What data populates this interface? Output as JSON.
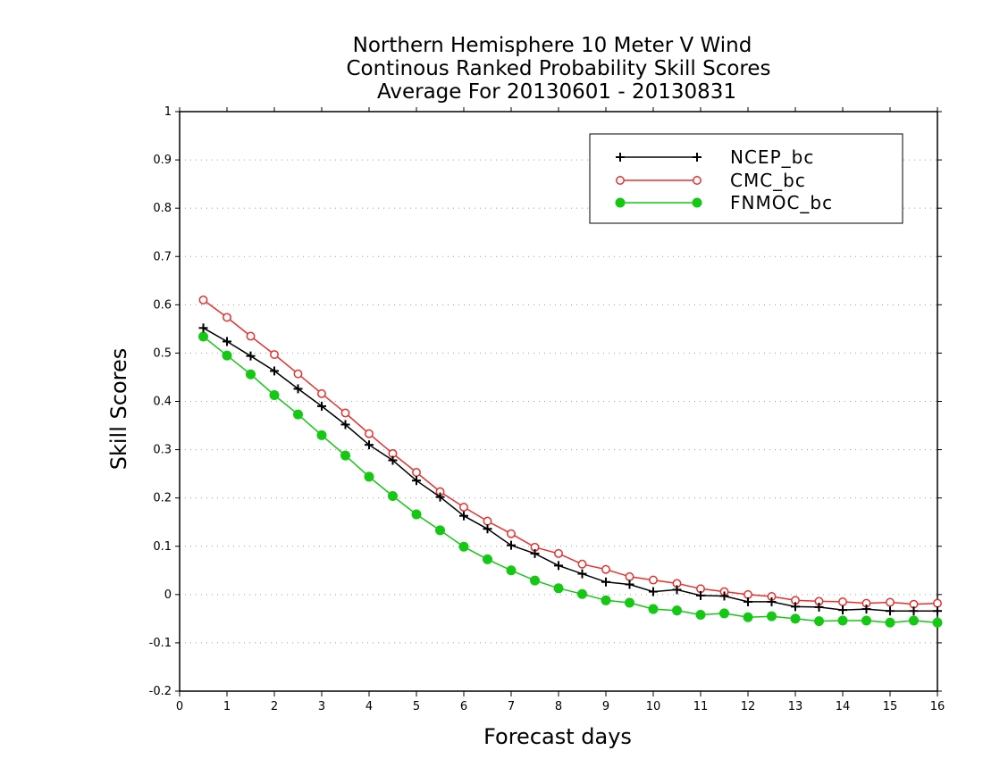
{
  "chart_data": {
    "type": "line",
    "title_lines": [
      "Northern Hemisphere 10 Meter V Wind",
      "Continous Ranked Probability Skill Scores",
      "Average For 20130601 - 20130831"
    ],
    "xlabel": "Forecast days",
    "ylabel": "Skill Scores",
    "xlim": [
      0,
      16
    ],
    "ylim": [
      -0.2,
      1
    ],
    "xticks": [
      "0",
      "1",
      "2",
      "3",
      "4",
      "5",
      "6",
      "7",
      "8",
      "9",
      "10",
      "11",
      "12",
      "13",
      "14",
      "15",
      "16"
    ],
    "yticks": [
      "-0.2",
      "-0.1",
      "0",
      "0.1",
      "0.2",
      "0.3",
      "0.4",
      "0.5",
      "0.6",
      "0.7",
      "0.8",
      "0.9",
      "1"
    ],
    "grid": "horizontal dotted",
    "legend_position": "top-right",
    "x": [
      0.5,
      1,
      1.5,
      2,
      2.5,
      3,
      3.5,
      4,
      4.5,
      5,
      5.5,
      6,
      6.5,
      7,
      7.5,
      8,
      8.5,
      9,
      9.5,
      10,
      10.5,
      11,
      11.5,
      12,
      12.5,
      13,
      13.5,
      14,
      14.5,
      15,
      15.5,
      16
    ],
    "series": [
      {
        "name": "NCEP_bc",
        "color": "#000000",
        "marker": "plus",
        "values": [
          0.552,
          0.524,
          0.494,
          0.463,
          0.426,
          0.39,
          0.352,
          0.31,
          0.278,
          0.236,
          0.202,
          0.163,
          0.136,
          0.102,
          0.085,
          0.06,
          0.043,
          0.026,
          0.021,
          0.006,
          0.01,
          -0.002,
          -0.003,
          -0.015,
          -0.015,
          -0.025,
          -0.026,
          -0.032,
          -0.03,
          -0.034,
          -0.034,
          -0.034
        ]
      },
      {
        "name": "CMC_bc",
        "color": "#e8302e",
        "marker": "open-circle",
        "values": [
          0.61,
          0.574,
          0.535,
          0.497,
          0.457,
          0.416,
          0.376,
          0.333,
          0.292,
          0.253,
          0.213,
          0.181,
          0.152,
          0.126,
          0.098,
          0.085,
          0.063,
          0.052,
          0.037,
          0.03,
          0.023,
          0.012,
          0.006,
          0.0,
          -0.004,
          -0.012,
          -0.014,
          -0.015,
          -0.018,
          -0.016,
          -0.02,
          -0.018
        ]
      },
      {
        "name": "FNMOC_bc",
        "color": "#14c814",
        "marker": "filled-circle",
        "values": [
          0.534,
          0.495,
          0.456,
          0.413,
          0.373,
          0.33,
          0.288,
          0.244,
          0.204,
          0.166,
          0.133,
          0.099,
          0.073,
          0.05,
          0.029,
          0.013,
          0.001,
          -0.012,
          -0.017,
          -0.03,
          -0.033,
          -0.042,
          -0.039,
          -0.047,
          -0.045,
          -0.05,
          -0.055,
          -0.054,
          -0.054,
          -0.058,
          -0.054,
          -0.058
        ]
      }
    ]
  }
}
